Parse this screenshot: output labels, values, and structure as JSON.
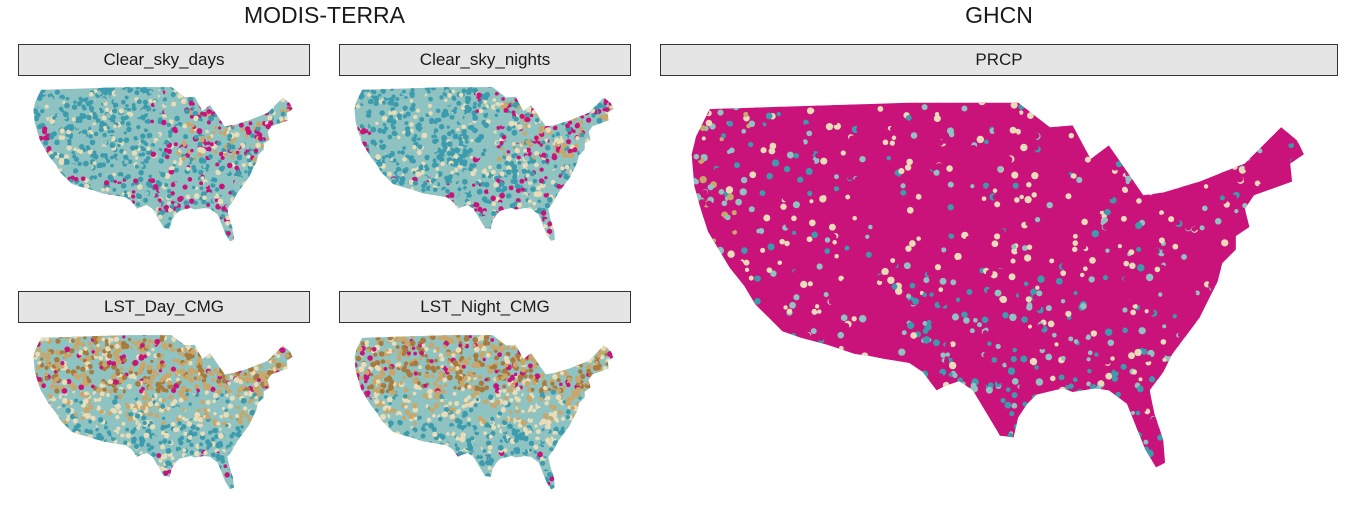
{
  "groups": {
    "modis": {
      "title": "MODIS-TERRA"
    },
    "ghcn": {
      "title": "GHCN"
    }
  },
  "panels": [
    {
      "id": "clear_sky_days",
      "label": "Clear_sky_days",
      "pattern": "cloudy-west"
    },
    {
      "id": "clear_sky_nights",
      "label": "Clear_sky_nights",
      "pattern": "cloudy-west"
    },
    {
      "id": "lst_day_cmg",
      "label": "LST_Day_CMG",
      "pattern": "arid-north"
    },
    {
      "id": "lst_night_cmg",
      "label": "LST_Night_CMG",
      "pattern": "arid-north"
    },
    {
      "id": "prcp",
      "label": "PRCP",
      "pattern": "stations"
    }
  ],
  "colors": {
    "magenta": "#c9137a",
    "teal": "#3c9cae",
    "light_teal": "#8fc3c1",
    "cream": "#e9dcb8",
    "tan": "#c9a76a",
    "brown": "#a87a3e"
  }
}
